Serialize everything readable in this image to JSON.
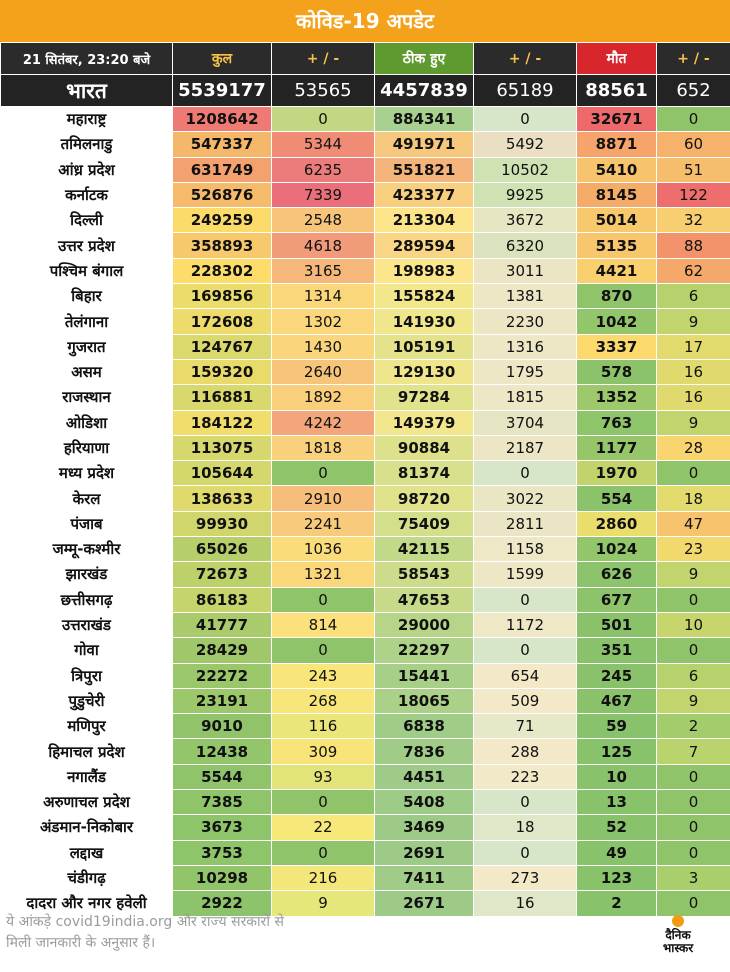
{
  "title": "कोविड-19 अपडेट",
  "header": {
    "date": "21 सितंबर, 23:20 बजे",
    "total": "कुल",
    "total_change": "+ / -",
    "recovered": "ठीक हुए",
    "recovered_change": "+ / -",
    "deaths": "मौत",
    "deaths_change": "+ / -"
  },
  "india": {
    "name": "भारत",
    "total": "5539177",
    "total_change": "53565",
    "recovered": "4457839",
    "recovered_change": "65189",
    "deaths": "88561",
    "deaths_change": "652"
  },
  "columns": [
    "total",
    "total_change",
    "recovered",
    "recovered_change",
    "deaths",
    "deaths_change"
  ],
  "states": [
    {
      "name": "महाराष्ट्र",
      "total": "1208642",
      "total_change": "0",
      "recovered": "884341",
      "recovered_change": "0",
      "deaths": "32671",
      "deaths_change": "0",
      "colors": [
        "#ee7a73",
        "#c3d782",
        "#a8d08e",
        "#d7e5c8",
        "#ee6a6a",
        "#8fc46a"
      ]
    },
    {
      "name": "तमिलनाडु",
      "total": "547337",
      "total_change": "5344",
      "recovered": "491971",
      "recovered_change": "5492",
      "deaths": "8871",
      "deaths_change": "60",
      "colors": [
        "#f5b86a",
        "#f08c76",
        "#f6c87e",
        "#eadfc3",
        "#f6a46b",
        "#f6b26b"
      ]
    },
    {
      "name": "आंध्र प्रदेश",
      "total": "631749",
      "total_change": "6235",
      "recovered": "551821",
      "recovered_change": "10502",
      "deaths": "5410",
      "deaths_change": "51",
      "colors": [
        "#f3a26f",
        "#ec7c7b",
        "#f5b47b",
        "#cfe2b3",
        "#f7c46d",
        "#f6be6c"
      ]
    },
    {
      "name": "कर्नाटक",
      "total": "526876",
      "total_change": "7339",
      "recovered": "423377",
      "recovered_change": "9925",
      "deaths": "8145",
      "deaths_change": "122",
      "colors": [
        "#f5bb6b",
        "#ea6f7a",
        "#f7cf7f",
        "#cfe2b3",
        "#f6ac69",
        "#ed6e6c"
      ]
    },
    {
      "name": "दिल्ली",
      "total": "249259",
      "total_change": "2548",
      "recovered": "213304",
      "recovered_change": "3672",
      "deaths": "5014",
      "deaths_change": "32",
      "colors": [
        "#fbdb6a",
        "#f7c57a",
        "#fbe48a",
        "#e6e6c3",
        "#f8c86c",
        "#f7cf70"
      ]
    },
    {
      "name": "उत्तर प्रदेश",
      "total": "358893",
      "total_change": "4618",
      "recovered": "289594",
      "recovered_change": "6320",
      "deaths": "5135",
      "deaths_change": "88",
      "colors": [
        "#f8c96c",
        "#f19b7a",
        "#f9d586",
        "#dbe3be",
        "#f8c66c",
        "#f3936b"
      ]
    },
    {
      "name": "पश्चिम बंगाल",
      "total": "228302",
      "total_change": "3165",
      "recovered": "198983",
      "recovered_change": "3011",
      "deaths": "4421",
      "deaths_change": "62",
      "colors": [
        "#fcdd6a",
        "#f5b87a",
        "#fbe68b",
        "#ebe5c4",
        "#f9d06d",
        "#f4a96b"
      ]
    },
    {
      "name": "बिहार",
      "total": "169856",
      "total_change": "1314",
      "recovered": "155824",
      "recovered_change": "1381",
      "deaths": "870",
      "deaths_change": "6",
      "colors": [
        "#ecdc6c",
        "#fad77b",
        "#f3e78c",
        "#eee7c6",
        "#8fc46a",
        "#b6d26d"
      ]
    },
    {
      "name": "तेलंगाना",
      "total": "172608",
      "total_change": "1302",
      "recovered": "141930",
      "recovered_change": "2230",
      "deaths": "1042",
      "deaths_change": "9",
      "colors": [
        "#eddc6c",
        "#fad77b",
        "#f0e68c",
        "#ece6c5",
        "#93c56a",
        "#c2d46d"
      ]
    },
    {
      "name": "गुजरात",
      "total": "124767",
      "total_change": "1430",
      "recovered": "105191",
      "recovered_change": "1316",
      "deaths": "3337",
      "deaths_change": "17",
      "colors": [
        "#dbd96c",
        "#fad57b",
        "#e4e38c",
        "#eee7c6",
        "#fbd96d",
        "#e4db6e"
      ]
    },
    {
      "name": "असम",
      "total": "159320",
      "total_change": "2640",
      "recovered": "129130",
      "recovered_change": "1795",
      "deaths": "578",
      "deaths_change": "16",
      "colors": [
        "#e8db6c",
        "#f7c57a",
        "#eee58c",
        "#ede7c6",
        "#8cc36a",
        "#e0da6e"
      ]
    },
    {
      "name": "राजस्थान",
      "total": "116881",
      "total_change": "1892",
      "recovered": "97284",
      "recovered_change": "1815",
      "deaths": "1352",
      "deaths_change": "16",
      "colors": [
        "#d8d86c",
        "#f9cf7b",
        "#e0e28c",
        "#ede7c6",
        "#9dc86b",
        "#e0da6e"
      ]
    },
    {
      "name": "ओडिशा",
      "total": "184122",
      "total_change": "4242",
      "recovered": "149379",
      "recovered_change": "3704",
      "deaths": "763",
      "deaths_change": "9",
      "colors": [
        "#f0dd6b",
        "#f2a67a",
        "#f2e78c",
        "#e6e5c3",
        "#8ec46a",
        "#c2d46d"
      ]
    },
    {
      "name": "हरियाणा",
      "total": "113075",
      "total_change": "1818",
      "recovered": "90884",
      "recovered_change": "2187",
      "deaths": "1177",
      "deaths_change": "28",
      "colors": [
        "#d6d76c",
        "#f9d07b",
        "#dde18c",
        "#ece6c5",
        "#97c66a",
        "#f9d56f"
      ]
    },
    {
      "name": "मध्य प्रदेश",
      "total": "105644",
      "total_change": "0",
      "recovered": "81374",
      "recovered_change": "0",
      "deaths": "1970",
      "deaths_change": "0",
      "colors": [
        "#d3d76c",
        "#8fc46a",
        "#d9e08b",
        "#d7e5c8",
        "#c2d36b",
        "#8fc46a"
      ]
    },
    {
      "name": "केरल",
      "total": "138633",
      "total_change": "2910",
      "recovered": "98720",
      "recovered_change": "3022",
      "deaths": "554",
      "deaths_change": "18",
      "colors": [
        "#e0da6c",
        "#f6be7a",
        "#e1e28c",
        "#e9e6c4",
        "#8bc36a",
        "#e4db6e"
      ]
    },
    {
      "name": "पंजाब",
      "total": "99930",
      "total_change": "2241",
      "recovered": "75409",
      "recovered_change": "2811",
      "deaths": "2860",
      "deaths_change": "47",
      "colors": [
        "#d0d66c",
        "#f8ca7b",
        "#d4df8b",
        "#eae6c5",
        "#e8dd6d",
        "#f7c46d"
      ]
    },
    {
      "name": "जम्मू-कश्मीर",
      "total": "65026",
      "total_change": "1036",
      "recovered": "42115",
      "recovered_change": "1158",
      "deaths": "1024",
      "deaths_change": "23",
      "colors": [
        "#b7cf6b",
        "#fbdc7b",
        "#c2d98a",
        "#efe8c6",
        "#93c56a",
        "#f2d96e"
      ]
    },
    {
      "name": "झारखंड",
      "total": "72673",
      "total_change": "1321",
      "recovered": "58543",
      "recovered_change": "1599",
      "deaths": "626",
      "deaths_change": "9",
      "colors": [
        "#bdd16b",
        "#fad77b",
        "#ccdc8a",
        "#eee7c6",
        "#8dc36a",
        "#c2d46d"
      ]
    },
    {
      "name": "छत्तीसगढ़",
      "total": "86183",
      "total_change": "0",
      "recovered": "47653",
      "recovered_change": "0",
      "deaths": "677",
      "deaths_change": "0",
      "colors": [
        "#c7d46c",
        "#8fc46a",
        "#c6da8a",
        "#d7e5c8",
        "#8dc36a",
        "#8fc46a"
      ]
    },
    {
      "name": "उत्तराखंड",
      "total": "41777",
      "total_change": "814",
      "recovered": "29000",
      "recovered_change": "1172",
      "deaths": "501",
      "deaths_change": "10",
      "colors": [
        "#a9cb6b",
        "#fbe07b",
        "#b6d589",
        "#efe8c6",
        "#8ac26a",
        "#c7d56d"
      ]
    },
    {
      "name": "गोवा",
      "total": "28429",
      "total_change": "0",
      "recovered": "22297",
      "recovered_change": "0",
      "deaths": "351",
      "deaths_change": "0",
      "colors": [
        "#a0c86b",
        "#8fc46a",
        "#afd289",
        "#d7e5c8",
        "#89c26a",
        "#8fc46a"
      ]
    },
    {
      "name": "त्रिपुरा",
      "total": "22272",
      "total_change": "243",
      "recovered": "15441",
      "recovered_change": "654",
      "deaths": "245",
      "deaths_change": "6",
      "colors": [
        "#9bc76b",
        "#f8e67a",
        "#a8cf88",
        "#f3e9c8",
        "#89c26a",
        "#b6d26d"
      ]
    },
    {
      "name": "पुडुचेरी",
      "total": "23191",
      "total_change": "268",
      "recovered": "18065",
      "recovered_change": "509",
      "deaths": "467",
      "deaths_change": "9",
      "colors": [
        "#9cc76b",
        "#f8e67a",
        "#abd088",
        "#f3e9c8",
        "#8ac26a",
        "#c2d46d"
      ]
    },
    {
      "name": "मणिपुर",
      "total": "9010",
      "total_change": "116",
      "recovered": "6838",
      "recovered_change": "71",
      "deaths": "59",
      "deaths_change": "2",
      "colors": [
        "#91c46a",
        "#eae67a",
        "#9fcc87",
        "#e6e8c8",
        "#88c26a",
        "#a3cd6c"
      ]
    },
    {
      "name": "हिमाचल प्रदेश",
      "total": "12438",
      "total_change": "309",
      "recovered": "7836",
      "recovered_change": "288",
      "deaths": "125",
      "deaths_change": "7",
      "colors": [
        "#93c56a",
        "#f9e47a",
        "#a0cc87",
        "#f3e9c8",
        "#88c26a",
        "#b9d36d"
      ]
    },
    {
      "name": "नगालैंड",
      "total": "5544",
      "total_change": "93",
      "recovered": "4451",
      "recovered_change": "223",
      "deaths": "10",
      "deaths_change": "0",
      "colors": [
        "#8fc46a",
        "#e2e47a",
        "#9ecb87",
        "#f2e9c8",
        "#88c26a",
        "#8fc46a"
      ]
    },
    {
      "name": "अरुणाचल प्रदेश",
      "total": "7385",
      "total_change": "0",
      "recovered": "5408",
      "recovered_change": "0",
      "deaths": "13",
      "deaths_change": "0",
      "colors": [
        "#90c46a",
        "#8fc46a",
        "#9ecb87",
        "#d7e5c8",
        "#88c26a",
        "#8fc46a"
      ]
    },
    {
      "name": "अंडमान-निकोबार",
      "total": "3673",
      "total_change": "22",
      "recovered": "3469",
      "recovered_change": "18",
      "deaths": "52",
      "deaths_change": "0",
      "colors": [
        "#8ec46a",
        "#f7e87a",
        "#9dcb87",
        "#dfe7c8",
        "#88c26a",
        "#8fc46a"
      ]
    },
    {
      "name": "लद्दाख",
      "total": "3753",
      "total_change": "0",
      "recovered": "2691",
      "recovered_change": "0",
      "deaths": "49",
      "deaths_change": "0",
      "colors": [
        "#8ec46a",
        "#8fc46a",
        "#9dcb87",
        "#d7e5c8",
        "#88c26a",
        "#8fc46a"
      ]
    },
    {
      "name": "चंडीगढ़",
      "total": "10298",
      "total_change": "216",
      "recovered": "7411",
      "recovered_change": "273",
      "deaths": "123",
      "deaths_change": "3",
      "colors": [
        "#92c46a",
        "#f3e67a",
        "#a0cc87",
        "#f3e9c8",
        "#88c26a",
        "#a9cf6c"
      ]
    },
    {
      "name": "दादरा और नगर हवेली",
      "total": "2922",
      "total_change": "9",
      "recovered": "2671",
      "recovered_change": "16",
      "deaths": "2",
      "deaths_change": "0",
      "colors": [
        "#8dc36a",
        "#e6e77a",
        "#9dcb87",
        "#dfe7c8",
        "#88c26a",
        "#8fc46a"
      ]
    }
  ],
  "footer": {
    "line1": "ये आंकड़े covid19india.org और राज्य सरकारों से",
    "line2": "मिली जानकारी के अनुसार हैं।"
  },
  "logo": {
    "line1": "दैनिक",
    "line2": "भास्कर"
  }
}
